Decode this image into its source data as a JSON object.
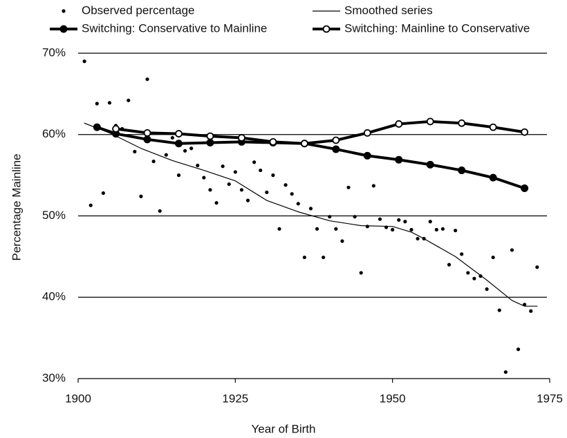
{
  "chart_data": {
    "type": "line",
    "x_label": "Year of Birth",
    "y_label": "Percentage Mainline",
    "xlim": [
      1900,
      1975
    ],
    "xticks": [
      1900,
      1925,
      1950,
      1975
    ],
    "ylim": [
      30,
      70
    ],
    "yticks": [
      {
        "value": 30,
        "label": "30%"
      },
      {
        "value": 40,
        "label": "40%"
      },
      {
        "value": 50,
        "label": "50%"
      },
      {
        "value": 60,
        "label": "60%"
      },
      {
        "value": 70,
        "label": "70%"
      }
    ],
    "grid": true,
    "series": [
      {
        "name": "Observed percentage",
        "color": "#000000",
        "marker": "dot",
        "line": false,
        "x": [
          1901,
          1902,
          1903,
          1904,
          1905,
          1906,
          1907,
          1908,
          1909,
          1910,
          1911,
          1912,
          1913,
          1914,
          1915,
          1916,
          1917,
          1918,
          1919,
          1920,
          1921,
          1922,
          1923,
          1924,
          1925,
          1926,
          1927,
          1928,
          1929,
          1930,
          1931,
          1932,
          1933,
          1934,
          1935,
          1936,
          1937,
          1938,
          1939,
          1940,
          1941,
          1942,
          1943,
          1944,
          1945,
          1946,
          1947,
          1948,
          1949,
          1950,
          1951,
          1952,
          1953,
          1954,
          1955,
          1956,
          1957,
          1958,
          1959,
          1960,
          1961,
          1962,
          1963,
          1964,
          1965,
          1966,
          1967,
          1968,
          1969,
          1970,
          1971,
          1972,
          1973
        ],
        "values": [
          69.0,
          51.3,
          63.8,
          52.8,
          63.9,
          61.1,
          60.7,
          64.2,
          57.9,
          52.4,
          66.8,
          56.7,
          50.6,
          57.5,
          59.6,
          55.0,
          58.0,
          58.3,
          56.2,
          54.7,
          53.2,
          51.6,
          56.1,
          53.9,
          55.4,
          53.2,
          51.9,
          56.6,
          55.6,
          52.9,
          55.0,
          48.4,
          53.8,
          52.7,
          51.5,
          44.9,
          50.9,
          48.4,
          44.9,
          49.9,
          48.4,
          46.9,
          53.5,
          49.9,
          43.0,
          48.7,
          53.7,
          49.6,
          48.6,
          48.3,
          49.5,
          49.3,
          48.3,
          47.2,
          47.2,
          49.3,
          48.3,
          48.4,
          44.0,
          48.2,
          45.3,
          43.0,
          42.3,
          42.6,
          41.0,
          44.9,
          38.4,
          30.8,
          45.8,
          33.6,
          39.1,
          38.3,
          43.7
        ]
      },
      {
        "name": "Smoothed series",
        "color": "#000000",
        "marker": "none",
        "line": true,
        "width": 1.2,
        "x": [
          1901,
          1905,
          1910,
          1915,
          1920,
          1925,
          1930,
          1935,
          1940,
          1945,
          1950,
          1953,
          1955,
          1960,
          1965,
          1969,
          1971,
          1973
        ],
        "values": [
          61.4,
          60.2,
          58.3,
          56.8,
          55.6,
          54.3,
          51.9,
          50.5,
          49.4,
          48.8,
          48.7,
          48.0,
          47.2,
          45.0,
          42.1,
          39.6,
          38.9,
          38.9
        ]
      },
      {
        "name": "Switching: Conservative to Mainline",
        "color": "#000000",
        "marker": "filled",
        "line": true,
        "width": 4,
        "x": [
          1903,
          1906,
          1911,
          1916,
          1921,
          1926,
          1931,
          1936,
          1941,
          1946,
          1951,
          1956,
          1961,
          1966,
          1971
        ],
        "values": [
          60.9,
          60.1,
          59.4,
          58.9,
          59.0,
          59.1,
          59.0,
          58.9,
          58.2,
          57.4,
          56.9,
          56.3,
          55.6,
          54.7,
          53.4
        ]
      },
      {
        "name": "Switching: Mainline to Conservative",
        "color": "#000000",
        "marker": "open",
        "line": true,
        "width": 4,
        "x": [
          1906,
          1911,
          1916,
          1921,
          1926,
          1931,
          1936,
          1941,
          1946,
          1951,
          1956,
          1961,
          1966,
          1971
        ],
        "values": [
          60.7,
          60.2,
          60.1,
          59.8,
          59.6,
          59.1,
          58.9,
          59.3,
          60.2,
          61.3,
          61.6,
          61.4,
          60.9,
          60.3
        ]
      }
    ]
  }
}
